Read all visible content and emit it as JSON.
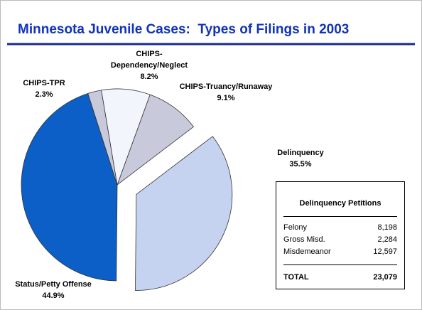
{
  "chart_data": {
    "type": "pie",
    "title": "Minnesota Juvenile Cases:  Types of Filings in 2003",
    "categories": [
      "CHIPS-Truancy/Runaway",
      "Delinquency",
      "Status/Petty Offense",
      "CHIPS-TPR",
      "CHIPS-Dependency/Neglect"
    ],
    "values": [
      9.1,
      35.5,
      44.9,
      2.3,
      8.2
    ],
    "value_labels": [
      "9.1%",
      "35.5%",
      "44.9%",
      "2.3%",
      "8.2%"
    ],
    "colors": [
      "#c9c9dc",
      "#c6d3f0",
      "#0b5fc6",
      "#c9c9dc",
      "#f2f5fb"
    ],
    "exploded": [
      false,
      true,
      false,
      false,
      false
    ]
  },
  "table": {
    "title": "Delinquency Petitions",
    "rows": [
      [
        "Felony",
        "8,198"
      ],
      [
        "Gross Misd.",
        "2,284"
      ],
      [
        "Misdemeanor",
        "12,597"
      ]
    ],
    "total": [
      "TOTAL",
      "23,079"
    ]
  }
}
